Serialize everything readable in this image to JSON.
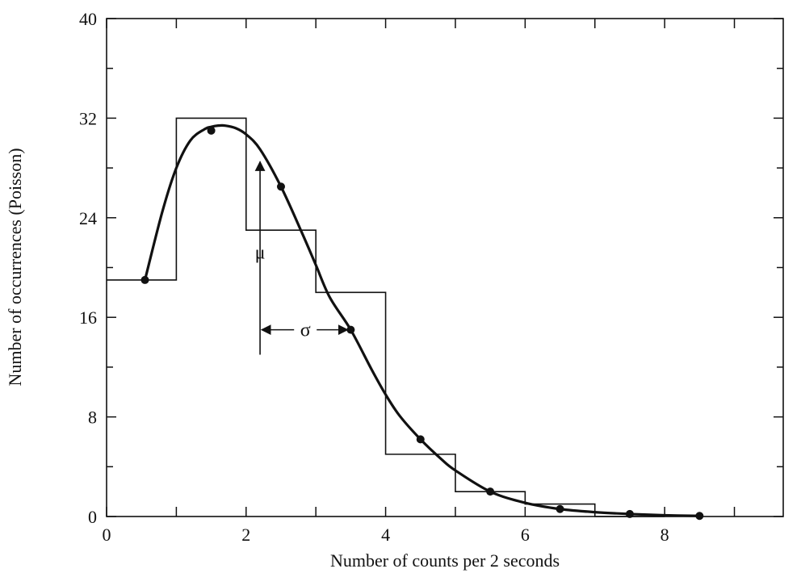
{
  "chart_data": {
    "type": "histogram-with-curve",
    "xlabel": "Number of counts per 2 seconds",
    "ylabel": "Number of occurrences (Poisson)",
    "xlim": [
      0,
      9.7
    ],
    "ylim": [
      0,
      40
    ],
    "x_ticks": [
      0,
      2,
      4,
      6,
      8
    ],
    "x_minor_ticks": [
      1,
      3,
      5,
      7,
      9
    ],
    "y_ticks": [
      0,
      8,
      16,
      24,
      32,
      40
    ],
    "y_minor_ticks": [
      4,
      12,
      20,
      28,
      36
    ],
    "grid": false,
    "histogram": {
      "bin_edges": [
        0,
        1,
        2,
        3,
        4,
        5,
        6,
        7,
        8
      ],
      "values": [
        19,
        32,
        23,
        18,
        5,
        2,
        1,
        0
      ]
    },
    "points": {
      "x": [
        0.55,
        1.5,
        2.5,
        3.5,
        4.5,
        5.5,
        6.5,
        7.5,
        8.5
      ],
      "y": [
        19,
        31,
        26.5,
        15,
        6.2,
        2,
        0.6,
        0.2,
        0.05
      ]
    },
    "curve": {
      "x": [
        0.55,
        0.8,
        1.0,
        1.2,
        1.4,
        1.5,
        1.6,
        1.7,
        1.85,
        2.0,
        2.2,
        2.5,
        2.8,
        3.0,
        3.2,
        3.5,
        3.8,
        4.0,
        4.2,
        4.5,
        4.8,
        5.0,
        5.5,
        6.0,
        6.5,
        7.0,
        7.5,
        8.0,
        8.5
      ],
      "y": [
        19,
        24.5,
        28,
        30.2,
        31.1,
        31.3,
        31.4,
        31.4,
        31.2,
        30.7,
        29.5,
        26.5,
        22.8,
        20.2,
        17.6,
        15.0,
        11.8,
        9.8,
        8.1,
        6.2,
        4.6,
        3.7,
        2.0,
        1.1,
        0.6,
        0.35,
        0.2,
        0.1,
        0.05
      ]
    },
    "annotations": {
      "mu_label": "μ",
      "mu_arrow": {
        "x": 2.2,
        "y_from": 13,
        "y_to": 28.5
      },
      "sigma_label": "σ",
      "sigma_arrow": {
        "y": 15,
        "x_from": 2.2,
        "x_to": 3.5
      }
    }
  }
}
